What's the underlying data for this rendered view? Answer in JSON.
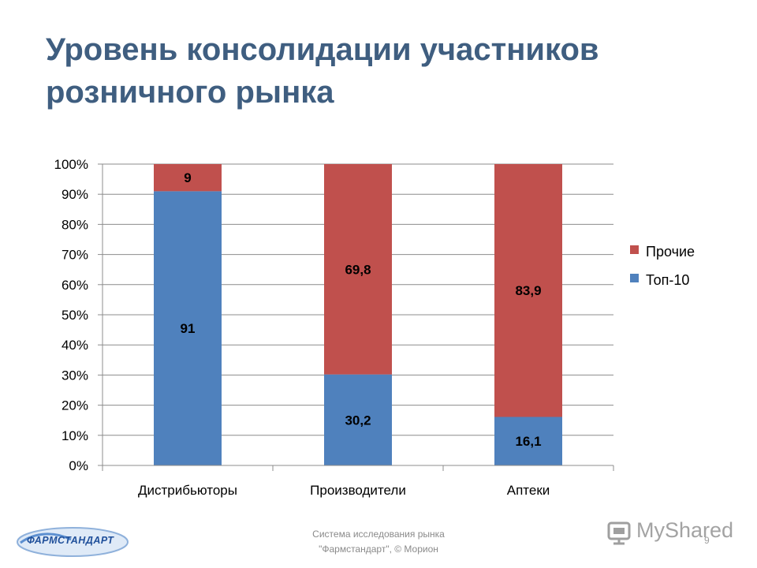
{
  "slide": {
    "title_lines": [
      "Уровень консолидации участников",
      "розничного рынка"
    ],
    "footer_lines": [
      "Система исследования рынка",
      "\"Фармстандарт\", © Морион"
    ],
    "logo_text": "ФАРМСТАНДАРТ",
    "watermark_text": "MyShared",
    "page_number": "9"
  },
  "chart_data": {
    "type": "bar",
    "stacked": "percent",
    "categories": [
      "Дистрибьюторы",
      "Производители",
      "Аптеки"
    ],
    "series": [
      {
        "name": "Топ-10",
        "values": [
          91,
          30.2,
          16.1
        ],
        "labels": [
          "91",
          "30,2",
          "16,1"
        ],
        "color": "#4f81bd"
      },
      {
        "name": "Прочие",
        "values": [
          9,
          69.8,
          83.9
        ],
        "labels": [
          "9",
          "69,8",
          "83,9"
        ],
        "color": "#c0504d"
      }
    ],
    "y_ticks": [
      "0%",
      "10%",
      "20%",
      "30%",
      "40%",
      "50%",
      "60%",
      "70%",
      "80%",
      "90%",
      "100%"
    ],
    "ylim": [
      0,
      100
    ],
    "grid": true,
    "legend_position": "right",
    "legend_order": [
      "Прочие",
      "Топ-10"
    ]
  }
}
